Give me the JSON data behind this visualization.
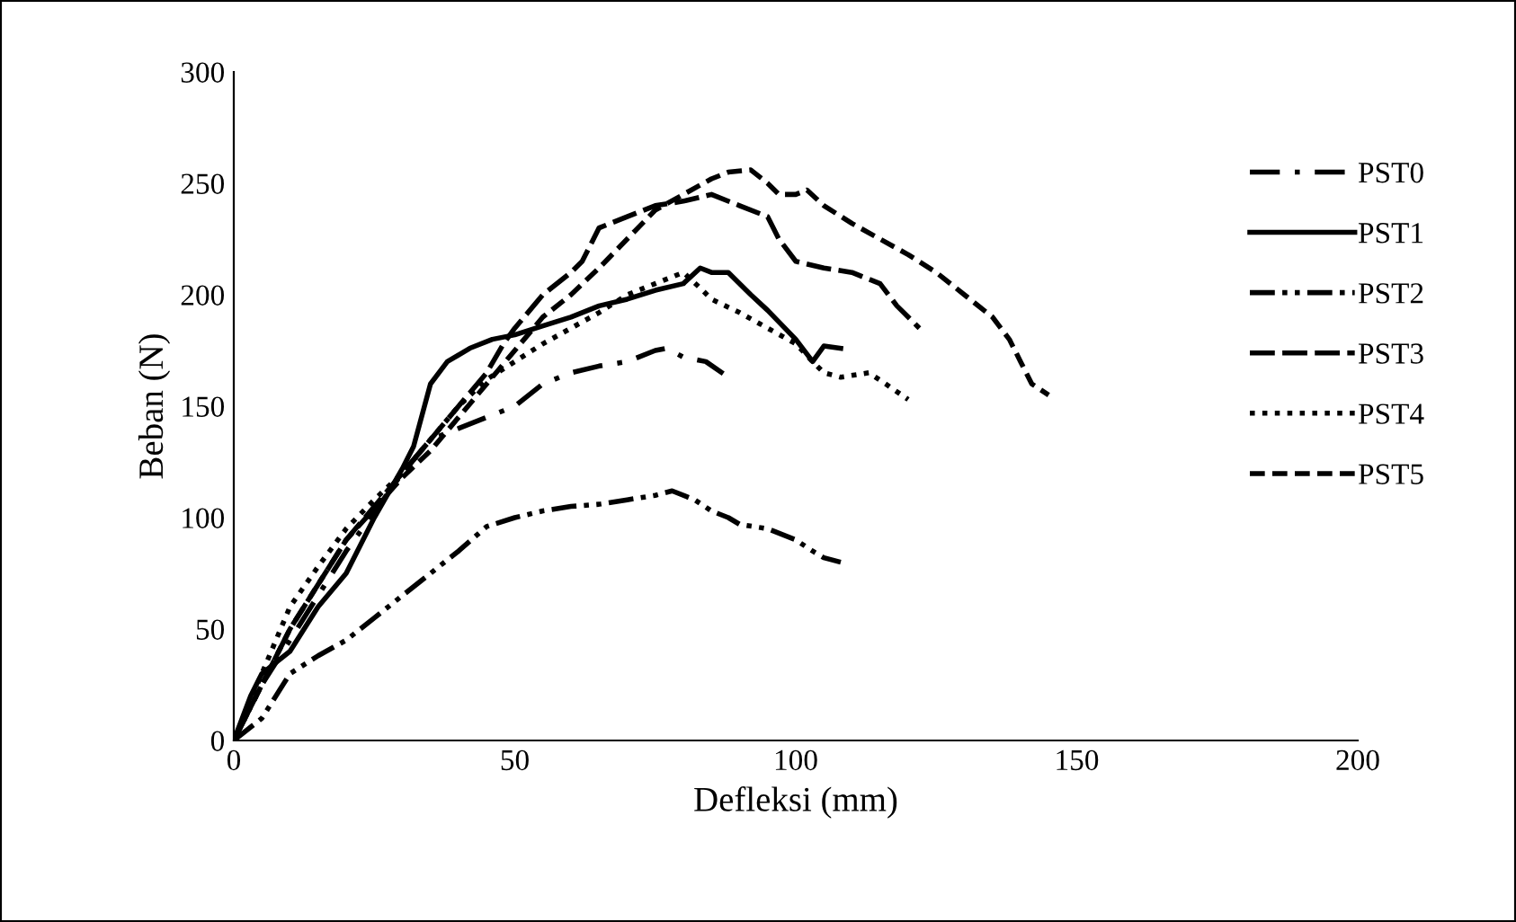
{
  "chart_data": {
    "type": "line",
    "xlabel": "Defleksi (mm)",
    "ylabel": "Beban (N)",
    "xlim": [
      0,
      200
    ],
    "xticks": [
      0,
      50,
      100,
      150,
      200
    ],
    "ylim": [
      0,
      300
    ],
    "yticks": [
      0,
      50,
      100,
      150,
      200,
      250,
      300
    ],
    "grid": false,
    "legend": "right",
    "marker": "none",
    "series": [
      {
        "name": "PST0",
        "color": "#000000",
        "line_style": "dashdot",
        "x": [
          0,
          5,
          10,
          20,
          30,
          35,
          38,
          45,
          50,
          55,
          60,
          65,
          70,
          75,
          77,
          80,
          84,
          88
        ],
        "values": [
          0,
          25,
          45,
          85,
          120,
          135,
          138,
          145,
          150,
          160,
          165,
          168,
          170,
          175,
          176,
          172,
          170,
          163
        ]
      },
      {
        "name": "PST1",
        "color": "#000000",
        "line_style": "solid",
        "x": [
          0,
          3,
          5,
          10,
          15,
          20,
          25,
          30,
          32,
          35,
          38,
          42,
          46,
          50,
          55,
          60,
          65,
          70,
          75,
          80,
          83,
          85,
          88,
          92,
          95,
          100,
          103,
          105,
          108
        ],
        "values": [
          0,
          20,
          30,
          40,
          60,
          75,
          100,
          122,
          132,
          160,
          170,
          176,
          180,
          182,
          186,
          190,
          195,
          198,
          202,
          205,
          212,
          210,
          210,
          200,
          193,
          180,
          170,
          177,
          176
        ]
      },
      {
        "name": "PST2",
        "color": "#000000",
        "line_style": "dashdotdot",
        "x": [
          0,
          5,
          10,
          15,
          20,
          25,
          30,
          35,
          40,
          45,
          50,
          55,
          60,
          65,
          70,
          75,
          78,
          82,
          85,
          88,
          90,
          95,
          100,
          103,
          105,
          108
        ],
        "values": [
          0,
          10,
          30,
          38,
          45,
          55,
          65,
          75,
          85,
          96,
          100,
          103,
          105,
          106,
          108,
          110,
          112,
          108,
          103,
          100,
          97,
          95,
          90,
          85,
          82,
          80
        ]
      },
      {
        "name": "PST3",
        "color": "#000000",
        "line_style": "longdash",
        "x": [
          0,
          5,
          10,
          20,
          30,
          35,
          40,
          45,
          48,
          50,
          55,
          60,
          62,
          65,
          70,
          75,
          80,
          85,
          90,
          95,
          97,
          100,
          105,
          110,
          115,
          118,
          122
        ],
        "values": [
          0,
          25,
          50,
          90,
          120,
          135,
          150,
          165,
          178,
          185,
          200,
          210,
          215,
          230,
          235,
          240,
          242,
          245,
          240,
          235,
          225,
          215,
          212,
          210,
          205,
          195,
          185
        ]
      },
      {
        "name": "PST4",
        "color": "#000000",
        "line_style": "dotted",
        "x": [
          0,
          5,
          10,
          15,
          20,
          25,
          30,
          35,
          40,
          45,
          50,
          55,
          60,
          65,
          70,
          75,
          80,
          83,
          85,
          90,
          95,
          100,
          103,
          105,
          108,
          113,
          116,
          120
        ],
        "values": [
          0,
          30,
          60,
          78,
          95,
          108,
          120,
          135,
          150,
          162,
          170,
          178,
          185,
          192,
          200,
          205,
          210,
          203,
          198,
          192,
          185,
          178,
          170,
          165,
          163,
          165,
          160,
          153
        ]
      },
      {
        "name": "PST5",
        "color": "#000000",
        "line_style": "dashed",
        "x": [
          0,
          5,
          10,
          20,
          30,
          35,
          40,
          45,
          50,
          55,
          60,
          65,
          70,
          75,
          80,
          85,
          88,
          92,
          95,
          97,
          100,
          102,
          105,
          110,
          115,
          120,
          125,
          130,
          135,
          138,
          140,
          142,
          145
        ],
        "values": [
          0,
          25,
          50,
          90,
          118,
          130,
          145,
          160,
          175,
          190,
          200,
          212,
          225,
          238,
          245,
          252,
          255,
          256,
          250,
          245,
          245,
          247,
          240,
          232,
          225,
          218,
          210,
          200,
          190,
          180,
          170,
          160,
          155
        ]
      }
    ]
  }
}
